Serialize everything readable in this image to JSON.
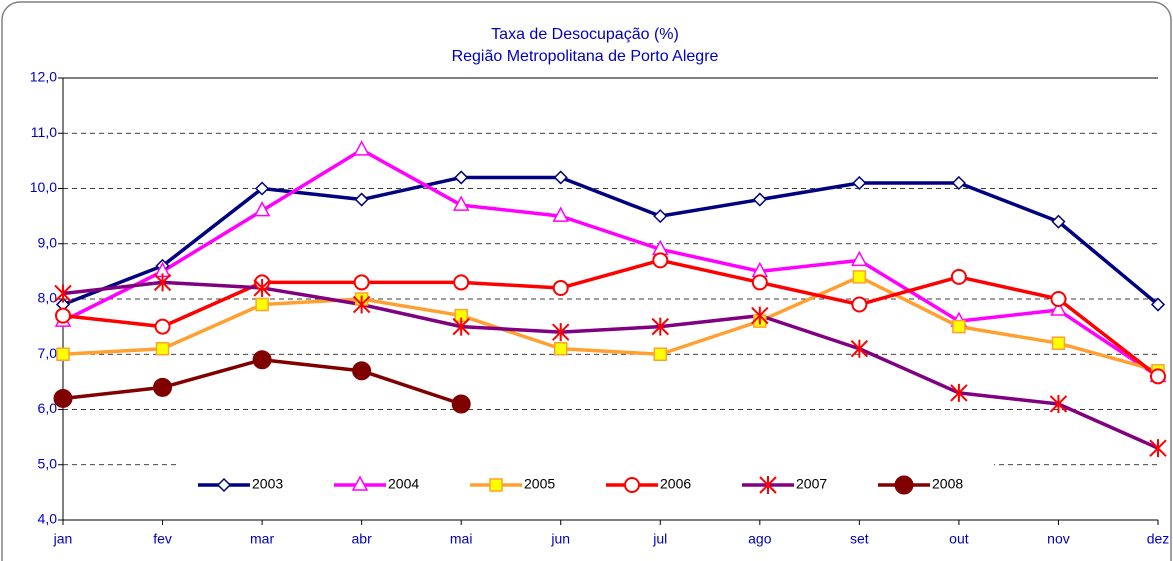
{
  "chart_data": {
    "type": "line",
    "title": "Taxa de Desocupação (%)",
    "subtitle": "Região Metropolitana de Porto Alegre",
    "categories": [
      "jan",
      "fev",
      "mar",
      "abr",
      "mai",
      "jun",
      "jul",
      "ago",
      "set",
      "out",
      "nov",
      "dez"
    ],
    "series": [
      {
        "name": "2003",
        "color": "#000080",
        "marker": "diamond",
        "marker_color": "#ffffff",
        "values": [
          7.9,
          8.6,
          10.0,
          9.8,
          10.2,
          10.2,
          9.5,
          9.8,
          10.1,
          10.1,
          9.4,
          7.9
        ]
      },
      {
        "name": "2004",
        "color": "#ff00ff",
        "marker": "triangle",
        "marker_color": "#ffffff",
        "values": [
          7.6,
          8.5,
          9.6,
          10.7,
          9.7,
          9.5,
          8.9,
          8.5,
          8.7,
          7.6,
          7.8,
          6.6
        ]
      },
      {
        "name": "2005",
        "color": "#ffa030",
        "marker": "square",
        "marker_color": "#ffff00",
        "values": [
          7.0,
          7.1,
          7.9,
          8.0,
          7.7,
          7.1,
          7.0,
          7.6,
          8.4,
          7.5,
          7.2,
          6.7
        ]
      },
      {
        "name": "2006",
        "color": "#ff0000",
        "marker": "circle",
        "marker_color": "#ffffff",
        "values": [
          7.7,
          7.5,
          8.3,
          8.3,
          8.3,
          8.2,
          8.7,
          8.3,
          7.9,
          8.4,
          8.0,
          6.6
        ]
      },
      {
        "name": "2007",
        "color": "#800080",
        "marker": "star",
        "marker_color": "#ff0000",
        "values": [
          8.1,
          8.3,
          8.2,
          7.9,
          7.5,
          7.4,
          7.5,
          7.7,
          7.1,
          6.3,
          6.1,
          5.3
        ]
      },
      {
        "name": "2008",
        "color": "#800000",
        "marker": "dot",
        "marker_color": "#800000",
        "values": [
          6.2,
          6.4,
          6.9,
          6.7,
          6.1,
          null,
          null,
          null,
          null,
          null,
          null,
          null
        ]
      }
    ],
    "ylim": [
      4,
      12
    ],
    "yticks": [
      {
        "value": 4,
        "label": "4,0"
      },
      {
        "value": 5,
        "label": "5,0"
      },
      {
        "value": 6,
        "label": "6,0"
      },
      {
        "value": 7,
        "label": "7,0"
      },
      {
        "value": 8,
        "label": "8,0"
      },
      {
        "value": 9,
        "label": "9,0"
      },
      {
        "value": 10,
        "label": "10,0"
      },
      {
        "value": 11,
        "label": "11,0"
      },
      {
        "value": 12,
        "label": "12,0"
      }
    ],
    "grid": true,
    "legend": "bottom"
  }
}
